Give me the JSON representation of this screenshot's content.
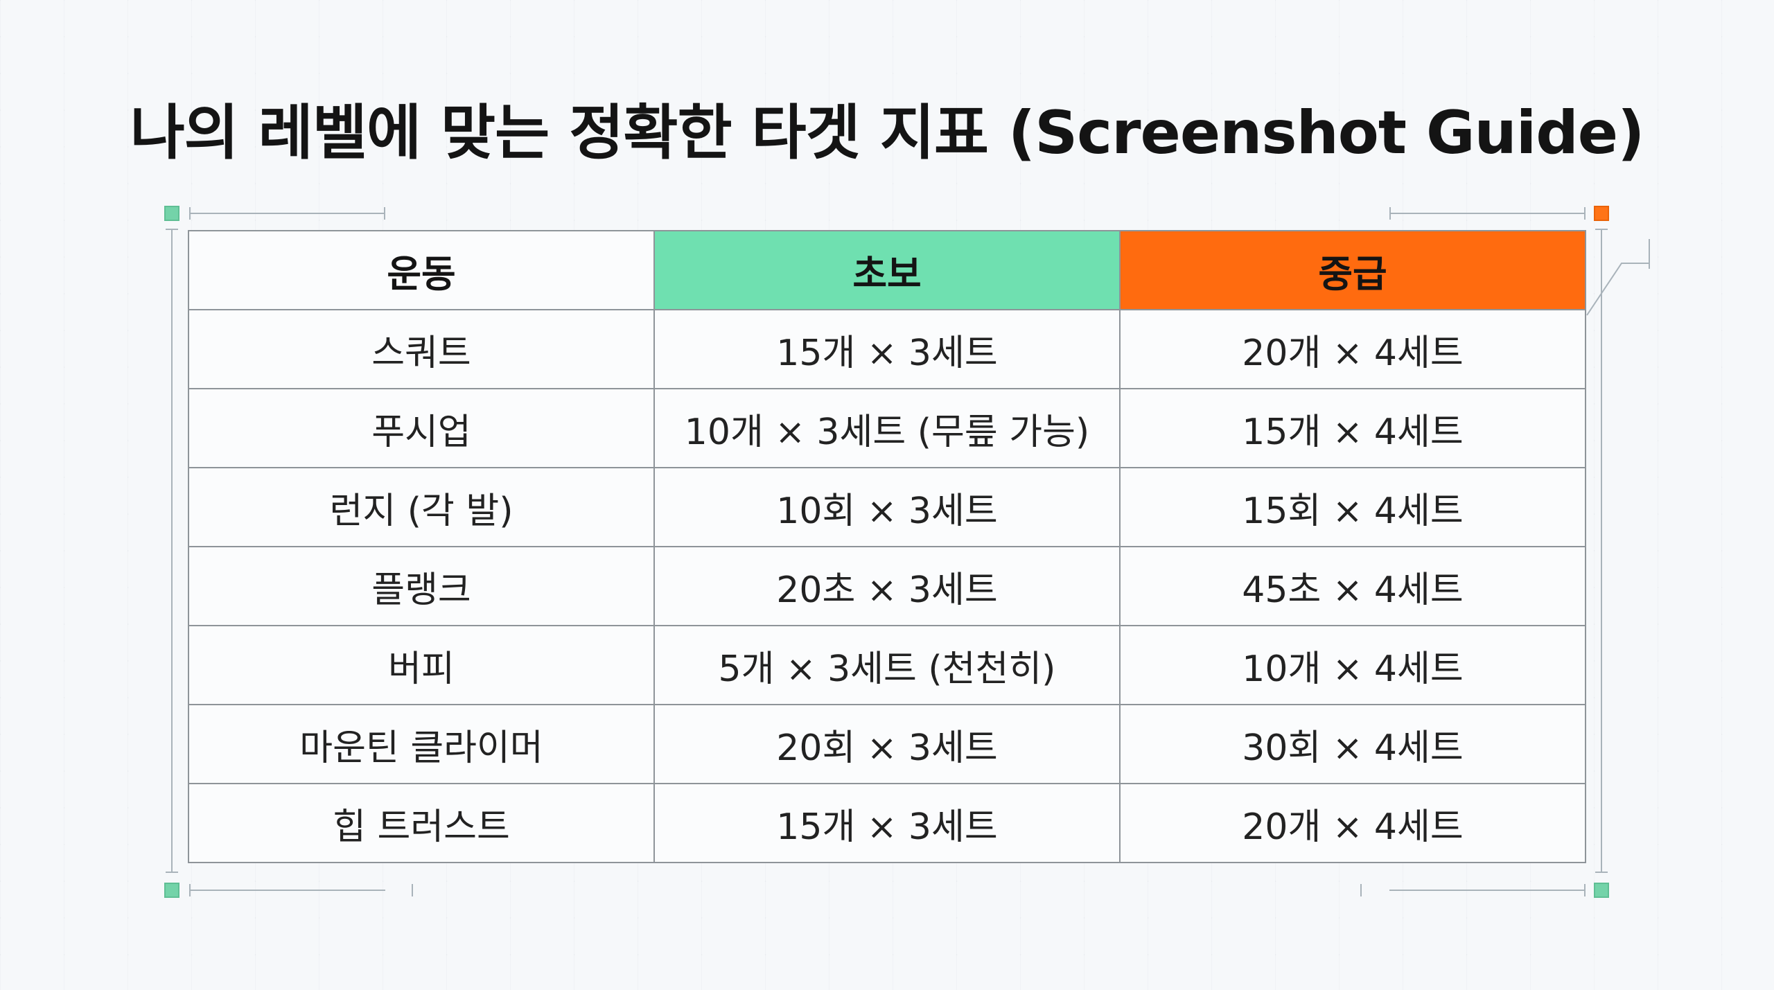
{
  "title": "나의 레벨에 맞는 정확한 타겟 지표 (Screenshot Guide)",
  "colors": {
    "beginner_header": "#6fe0b0",
    "intermediate_header": "#ff6b0f",
    "handle_green": "#74d3a9",
    "handle_orange": "#ff7417"
  },
  "table": {
    "headers": [
      "운동",
      "초보",
      "중급"
    ],
    "rows": [
      [
        "스쿼트",
        "15개 × 3세트",
        "20개 × 4세트"
      ],
      [
        "푸시업",
        "10개 × 3세트 (무릎 가능)",
        "15개 × 4세트"
      ],
      [
        "런지 (각 발)",
        "10회 × 3세트",
        "15회 × 4세트"
      ],
      [
        "플랭크",
        "20초 × 3세트",
        "45초 × 4세트"
      ],
      [
        "버피",
        "5개 × 3세트 (천천히)",
        "10개 × 4세트"
      ],
      [
        "마운틴 클라이머",
        "20회 × 3세트",
        "30회 × 4세트"
      ],
      [
        "힙 트러스트",
        "15개 × 3세트",
        "20개 × 4세트"
      ]
    ]
  }
}
